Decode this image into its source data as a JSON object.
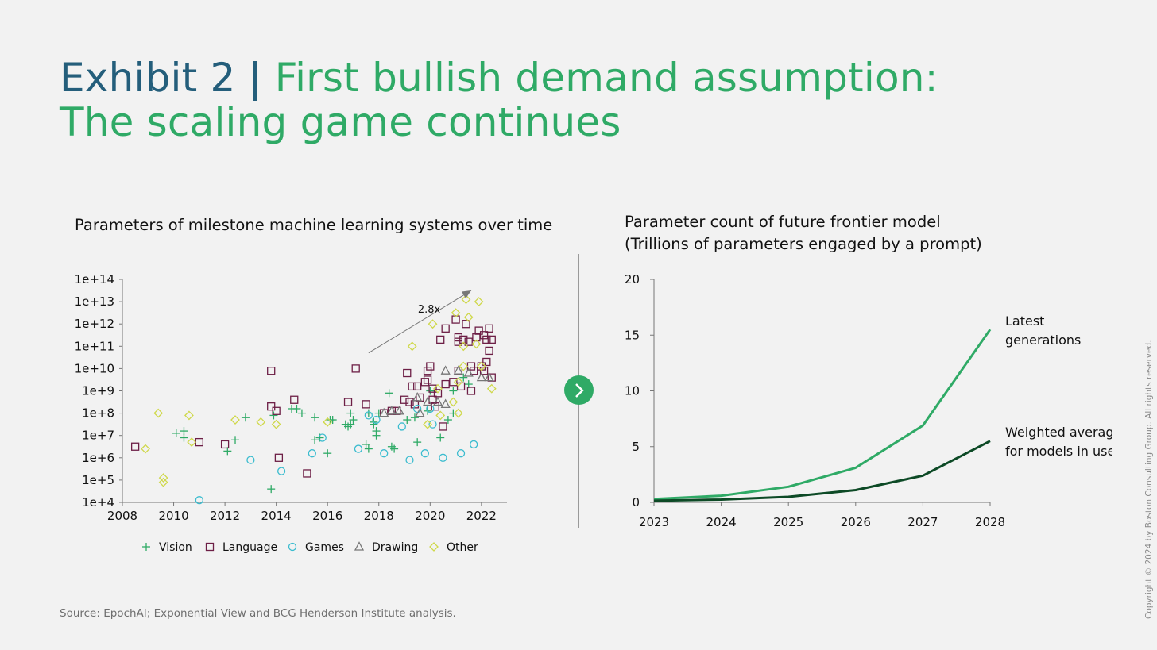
{
  "title": {
    "exhibit": "Exhibit 2",
    "separator": "|",
    "line1": "First bullish demand assumption:",
    "line2": "The scaling game continues"
  },
  "colors": {
    "title_blue": "#245e7b",
    "green": "#2faa66",
    "dark_green": "#0d4a26",
    "language": "#6d1f46",
    "games": "#3bbccf",
    "drawing": "#777777",
    "other": "#cfd84a"
  },
  "icons": {
    "next": "chevron-right-icon"
  },
  "source": "Source: EpochAI; Exponential View and BCG Henderson Institute analysis.",
  "copyright": "Copyright © 2024 by Boston Consulting Group. All rights reserved.",
  "left_chart": {
    "subtitle": "Parameters of milestone machine learning systems over time",
    "annotation": "2.8x",
    "y_tick_labels": [
      "1e+4",
      "1e+5",
      "1e+6",
      "1e+7",
      "1e+8",
      "1e+9",
      "1e+10",
      "1e+11",
      "1e+12",
      "1e+13",
      "1e+14"
    ],
    "x_tick_labels": [
      "2008",
      "2010",
      "2012",
      "2014",
      "2016",
      "2018",
      "2020",
      "2022"
    ],
    "legend": [
      "Vision",
      "Language",
      "Games",
      "Drawing",
      "Other"
    ]
  },
  "right_chart": {
    "subtitle_line1": "Parameter count of future frontier model",
    "subtitle_line2": "(Trillions of parameters engaged by a prompt)",
    "y_tick_labels": [
      "0",
      "5",
      "10",
      "15",
      "20"
    ],
    "x_tick_labels": [
      "2023",
      "2024",
      "2025",
      "2026",
      "2027",
      "2028"
    ],
    "label_latest_1": "Latest",
    "label_latest_2": "generations",
    "label_avg_1": "Weighted average",
    "label_avg_2": "for models in use"
  },
  "chart_data": [
    {
      "type": "scatter",
      "title": "Parameters of milestone machine learning systems over time",
      "xlim": [
        2008,
        2022.5
      ],
      "ylim": [
        4,
        14
      ],
      "y_scale": "log10",
      "grid": false,
      "legend_position": "bottom",
      "annotation": {
        "text": "2.8x",
        "from": [
          2017.6,
          10.7
        ],
        "to": [
          2021.6,
          13.5
        ]
      },
      "series": [
        {
          "name": "Vision",
          "marker": "plus",
          "points": [
            [
              2010.1,
              7.1
            ],
            [
              2010.4,
              7.2
            ],
            [
              2010.4,
              6.9
            ],
            [
              2012.1,
              6.3
            ],
            [
              2012.4,
              6.8
            ],
            [
              2012.8,
              7.8
            ],
            [
              2013.8,
              4.6
            ],
            [
              2013.9,
              7.9
            ],
            [
              2014.6,
              8.2
            ],
            [
              2014.8,
              8.2
            ],
            [
              2015.0,
              8.0
            ],
            [
              2015.5,
              7.8
            ],
            [
              2015.5,
              6.8
            ],
            [
              2015.7,
              6.9
            ],
            [
              2016.0,
              6.2
            ],
            [
              2016.1,
              7.7
            ],
            [
              2016.2,
              7.7
            ],
            [
              2016.7,
              7.5
            ],
            [
              2016.8,
              7.4
            ],
            [
              2016.9,
              7.5
            ],
            [
              2016.9,
              8.0
            ],
            [
              2017.0,
              7.7
            ],
            [
              2017.5,
              6.6
            ],
            [
              2017.6,
              8.0
            ],
            [
              2017.6,
              6.4
            ],
            [
              2017.8,
              7.5
            ],
            [
              2017.8,
              7.6
            ],
            [
              2017.9,
              7.0
            ],
            [
              2017.9,
              7.2
            ],
            [
              2018.0,
              8.0
            ],
            [
              2018.4,
              8.9
            ],
            [
              2018.5,
              6.5
            ],
            [
              2018.6,
              6.4
            ],
            [
              2019.1,
              7.7
            ],
            [
              2019.4,
              7.8
            ],
            [
              2019.5,
              6.7
            ],
            [
              2019.9,
              8.1
            ],
            [
              2020.0,
              9.0
            ],
            [
              2020.4,
              6.9
            ],
            [
              2020.7,
              7.7
            ],
            [
              2020.9,
              9.0
            ],
            [
              2020.9,
              8.0
            ],
            [
              2021.3,
              9.6
            ],
            [
              2021.5,
              9.3
            ]
          ]
        },
        {
          "name": "Language",
          "marker": "square",
          "points": [
            [
              2008.5,
              6.5
            ],
            [
              2011.0,
              6.7
            ],
            [
              2012.0,
              6.6
            ],
            [
              2013.8,
              9.9
            ],
            [
              2013.8,
              8.3
            ],
            [
              2014.0,
              8.1
            ],
            [
              2014.1,
              6.0
            ],
            [
              2014.7,
              8.6
            ],
            [
              2015.2,
              5.3
            ],
            [
              2016.8,
              8.5
            ],
            [
              2017.1,
              10.0
            ],
            [
              2017.5,
              8.4
            ],
            [
              2018.2,
              8.0
            ],
            [
              2018.5,
              8.1
            ],
            [
              2018.7,
              8.1
            ],
            [
              2019.0,
              8.6
            ],
            [
              2019.1,
              9.8
            ],
            [
              2019.2,
              8.5
            ],
            [
              2019.3,
              9.2
            ],
            [
              2019.4,
              8.4
            ],
            [
              2019.5,
              9.2
            ],
            [
              2019.6,
              8.7
            ],
            [
              2019.8,
              9.4
            ],
            [
              2019.9,
              9.9
            ],
            [
              2019.9,
              9.5
            ],
            [
              2020.0,
              10.1
            ],
            [
              2020.1,
              8.6
            ],
            [
              2020.1,
              9.1
            ],
            [
              2020.2,
              8.3
            ],
            [
              2020.3,
              8.9
            ],
            [
              2020.4,
              11.3
            ],
            [
              2020.5,
              7.4
            ],
            [
              2020.6,
              11.8
            ],
            [
              2020.6,
              9.3
            ],
            [
              2020.9,
              9.4
            ],
            [
              2021.0,
              12.2
            ],
            [
              2021.1,
              11.4
            ],
            [
              2021.1,
              11.2
            ],
            [
              2021.1,
              9.9
            ],
            [
              2021.2,
              9.2
            ],
            [
              2021.3,
              11.3
            ],
            [
              2021.4,
              12.0
            ],
            [
              2021.5,
              11.2
            ],
            [
              2021.6,
              10.1
            ],
            [
              2021.6,
              9.0
            ],
            [
              2021.7,
              9.9
            ],
            [
              2021.8,
              11.4
            ],
            [
              2021.9,
              11.7
            ],
            [
              2022.0,
              10.1
            ],
            [
              2022.1,
              11.5
            ],
            [
              2022.1,
              9.9
            ],
            [
              2022.2,
              11.3
            ],
            [
              2022.2,
              10.3
            ],
            [
              2022.3,
              11.8
            ],
            [
              2022.3,
              10.8
            ],
            [
              2022.4,
              11.3
            ],
            [
              2022.4,
              9.6
            ]
          ]
        },
        {
          "name": "Games",
          "marker": "circle",
          "points": [
            [
              2011.0,
              4.1
            ],
            [
              2013.0,
              5.9
            ],
            [
              2014.2,
              5.4
            ],
            [
              2015.4,
              6.2
            ],
            [
              2015.8,
              6.9
            ],
            [
              2017.2,
              6.4
            ],
            [
              2017.6,
              7.9
            ],
            [
              2017.9,
              7.7
            ],
            [
              2018.2,
              6.2
            ],
            [
              2018.9,
              7.4
            ],
            [
              2019.2,
              5.9
            ],
            [
              2019.5,
              8.2
            ],
            [
              2019.8,
              6.2
            ],
            [
              2020.0,
              8.2
            ],
            [
              2020.1,
              7.5
            ],
            [
              2020.5,
              6.0
            ],
            [
              2021.2,
              6.2
            ],
            [
              2021.7,
              6.6
            ]
          ]
        },
        {
          "name": "Drawing",
          "marker": "triangle",
          "points": [
            [
              2018.2,
              8.0
            ],
            [
              2018.5,
              8.1
            ],
            [
              2018.8,
              8.1
            ],
            [
              2019.5,
              8.7
            ],
            [
              2019.6,
              8.0
            ],
            [
              2019.9,
              8.5
            ],
            [
              2020.3,
              8.5
            ],
            [
              2020.6,
              9.9
            ],
            [
              2020.6,
              8.4
            ],
            [
              2021.1,
              9.9
            ],
            [
              2021.5,
              9.8
            ],
            [
              2022.0,
              9.6
            ],
            [
              2022.3,
              9.6
            ]
          ]
        },
        {
          "name": "Other",
          "marker": "diamond",
          "points": [
            [
              2008.9,
              6.4
            ],
            [
              2009.4,
              8.0
            ],
            [
              2009.6,
              5.1
            ],
            [
              2009.6,
              4.9
            ],
            [
              2010.6,
              7.9
            ],
            [
              2010.7,
              6.7
            ],
            [
              2012.4,
              7.7
            ],
            [
              2013.4,
              7.6
            ],
            [
              2014.0,
              7.5
            ],
            [
              2016.0,
              7.6
            ],
            [
              2019.3,
              11.0
            ],
            [
              2019.9,
              7.5
            ],
            [
              2020.1,
              12.0
            ],
            [
              2020.3,
              9.1
            ],
            [
              2020.4,
              7.9
            ],
            [
              2020.9,
              8.5
            ],
            [
              2021.0,
              12.5
            ],
            [
              2021.1,
              9.4
            ],
            [
              2021.1,
              8.0
            ],
            [
              2021.3,
              11.0
            ],
            [
              2021.3,
              10.1
            ],
            [
              2021.4,
              13.1
            ],
            [
              2021.5,
              12.3
            ],
            [
              2021.8,
              11.1
            ],
            [
              2021.9,
              13.0
            ],
            [
              2022.0,
              10.1
            ],
            [
              2022.4,
              9.1
            ]
          ]
        }
      ]
    },
    {
      "type": "line",
      "title": "Parameter count of future frontier model",
      "subtitle": "(Trillions of parameters engaged by a prompt)",
      "x": [
        2023,
        2024,
        2025,
        2026,
        2027,
        2028
      ],
      "ylim": [
        0,
        20
      ],
      "grid": false,
      "series": [
        {
          "name": "Latest generations",
          "color": "#2faa66",
          "values": [
            0.3,
            0.6,
            1.4,
            3.1,
            6.9,
            15.5
          ]
        },
        {
          "name": "Weighted average for models in use",
          "color": "#0d4a26",
          "values": [
            0.15,
            0.25,
            0.5,
            1.1,
            2.4,
            5.5
          ]
        }
      ]
    }
  ]
}
